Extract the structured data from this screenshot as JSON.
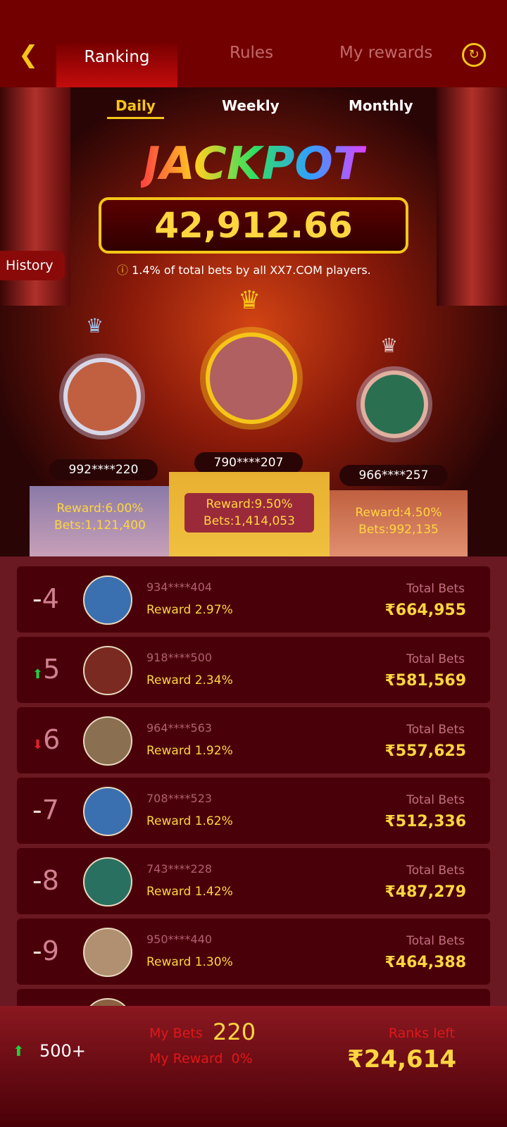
{
  "header": {
    "tabs": [
      "Ranking",
      "Rules",
      "My rewards"
    ],
    "active_tab": "Ranking"
  },
  "periods": {
    "items": [
      "Daily",
      "Weekly",
      "Monthly"
    ],
    "active": "Daily"
  },
  "jackpot": {
    "title": "JACKPOT",
    "amount": "42,912.66",
    "info": "1.4% of total bets by all XX7.COM players."
  },
  "history_label": "History",
  "podium": [
    {
      "rank": "2",
      "id": "992****220",
      "reward": "Reward:6.00%",
      "bets": "Bets:1,121,400"
    },
    {
      "rank": "1",
      "id": "790****207",
      "reward": "Reward:9.50%",
      "bets": "Bets:1,414,053"
    },
    {
      "rank": "3",
      "id": "966****257",
      "reward": "Reward:4.50%",
      "bets": "Bets:992,135"
    }
  ],
  "list": [
    {
      "trend": "-",
      "rank": "4",
      "id": "934****404",
      "reward": "Reward 2.97%",
      "total_label": "Total Bets",
      "total": "₹664,955",
      "avatar_color": "#3a70b0"
    },
    {
      "trend": "up",
      "rank": "5",
      "id": "918****500",
      "reward": "Reward 2.34%",
      "total_label": "Total Bets",
      "total": "₹581,569",
      "avatar_color": "#7a2a20"
    },
    {
      "trend": "down",
      "rank": "6",
      "id": "964****563",
      "reward": "Reward 1.92%",
      "total_label": "Total Bets",
      "total": "₹557,625",
      "avatar_color": "#8a7050"
    },
    {
      "trend": "-",
      "rank": "7",
      "id": "708****523",
      "reward": "Reward 1.62%",
      "total_label": "Total Bets",
      "total": "₹512,336",
      "avatar_color": "#3a70b0"
    },
    {
      "trend": "-",
      "rank": "8",
      "id": "743****228",
      "reward": "Reward 1.42%",
      "total_label": "Total Bets",
      "total": "₹487,279",
      "avatar_color": "#2a7060"
    },
    {
      "trend": "-",
      "rank": "9",
      "id": "950****440",
      "reward": "Reward 1.30%",
      "total_label": "Total Bets",
      "total": "₹464,388",
      "avatar_color": "#b09070"
    }
  ],
  "footer": {
    "trend": "up",
    "my_rank": "500+",
    "my_bets_label": "My Bets",
    "my_bets": "220",
    "my_reward_label": "My Reward",
    "my_reward": "0%",
    "ranks_left_label": "Ranks left",
    "ranks_left": "₹24,614"
  }
}
